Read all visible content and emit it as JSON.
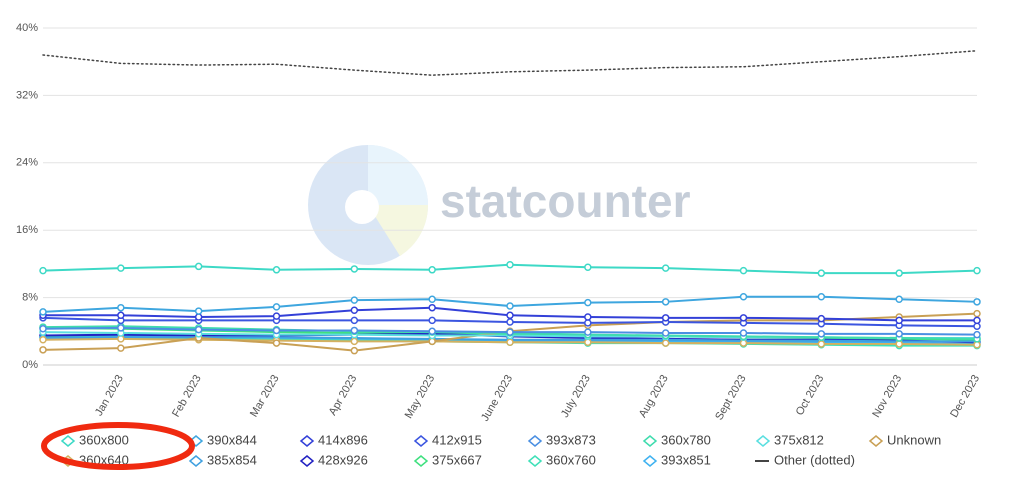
{
  "chart_data": {
    "type": "line",
    "watermark": "statcounter",
    "categories": [
      null,
      "Jan 2023",
      "Feb 2023",
      "Mar 2023",
      "Apr 2023",
      "May 2023",
      "June 2023",
      "July 2023",
      "Aug 2023",
      "Sept 2023",
      "Oct 2023",
      "Nov 2023",
      "Dec 2023"
    ],
    "ylim": [
      0,
      40
    ],
    "yticks": [
      {
        "value": 0,
        "label": "0%"
      },
      {
        "value": 8,
        "label": "8%"
      },
      {
        "value": 16,
        "label": "16%"
      },
      {
        "value": 24,
        "label": "24%"
      },
      {
        "value": 32,
        "label": "32%"
      },
      {
        "value": 40,
        "label": "40%"
      }
    ],
    "grid": true,
    "legend": "bottom",
    "series": [
      {
        "name": "360x800",
        "color": "#3dd9c6",
        "values": [
          11.2,
          11.5,
          11.7,
          11.3,
          11.4,
          11.3,
          11.9,
          11.6,
          11.5,
          11.2,
          10.9,
          10.9,
          11.2
        ]
      },
      {
        "name": "390x844",
        "color": "#3ea6df",
        "values": [
          6.3,
          6.8,
          6.4,
          6.9,
          7.7,
          7.8,
          7.0,
          7.4,
          7.5,
          8.1,
          8.1,
          7.8,
          7.5
        ]
      },
      {
        "name": "414x896",
        "color": "#3340d8",
        "values": [
          5.9,
          5.9,
          5.7,
          5.8,
          6.5,
          6.8,
          5.9,
          5.7,
          5.6,
          5.6,
          5.5,
          5.3,
          5.3
        ]
      },
      {
        "name": "412x915",
        "color": "#3b55e0",
        "values": [
          5.6,
          5.3,
          5.3,
          5.3,
          5.3,
          5.3,
          5.1,
          5.0,
          5.1,
          5.0,
          4.9,
          4.7,
          4.6
        ]
      },
      {
        "name": "393x873",
        "color": "#4a8fe2",
        "values": [
          4.3,
          4.4,
          4.2,
          4.1,
          4.1,
          4.0,
          3.9,
          3.9,
          3.8,
          3.8,
          3.7,
          3.7,
          3.6
        ]
      },
      {
        "name": "360x780",
        "color": "#3fdcae",
        "values": [
          4.5,
          4.6,
          4.4,
          4.2,
          4.0,
          3.9,
          3.8,
          3.6,
          3.5,
          3.4,
          3.3,
          3.2,
          3.1
        ]
      },
      {
        "name": "375x812",
        "color": "#5adfe0",
        "values": [
          3.9,
          3.8,
          3.7,
          3.6,
          3.6,
          3.5,
          3.5,
          3.4,
          3.4,
          3.3,
          3.3,
          3.2,
          3.2
        ]
      },
      {
        "name": "Unknown",
        "color": "#c9a055",
        "values": [
          1.8,
          2.0,
          3.2,
          2.6,
          1.7,
          2.8,
          4.0,
          4.7,
          5.1,
          5.3,
          5.3,
          5.7,
          6.1
        ]
      },
      {
        "name": "360x640",
        "color": "#d4b060",
        "values": [
          3.0,
          3.1,
          3.0,
          2.9,
          2.8,
          2.8,
          2.7,
          2.7,
          2.6,
          2.6,
          2.5,
          2.5,
          2.4
        ]
      },
      {
        "name": "385x854",
        "color": "#3fa0e0",
        "values": [
          3.2,
          3.3,
          3.3,
          3.3,
          3.2,
          3.1,
          3.0,
          3.0,
          3.0,
          2.9,
          2.9,
          2.8,
          2.8
        ]
      },
      {
        "name": "428x926",
        "color": "#2222c2",
        "values": [
          3.5,
          3.6,
          3.5,
          3.5,
          3.6,
          3.7,
          3.4,
          3.2,
          3.1,
          3.0,
          3.0,
          2.9,
          2.7
        ]
      },
      {
        "name": "375x667",
        "color": "#3fe07f",
        "values": [
          4.4,
          4.3,
          4.1,
          3.9,
          3.8,
          3.7,
          3.6,
          3.5,
          3.4,
          3.3,
          3.2,
          3.1,
          3.0
        ]
      },
      {
        "name": "360x760",
        "color": "#3fe0b8",
        "values": [
          3.3,
          3.3,
          3.1,
          3.0,
          2.9,
          2.8,
          2.7,
          2.6,
          2.6,
          2.5,
          2.4,
          2.3,
          2.3
        ]
      },
      {
        "name": "393x851",
        "color": "#3fb2f0",
        "values": [
          3.4,
          3.4,
          3.3,
          3.2,
          3.1,
          3.0,
          2.9,
          2.8,
          2.8,
          2.7,
          2.7,
          2.6,
          2.5
        ]
      },
      {
        "name": "Other (dotted)",
        "color": "#444444",
        "style": "dotted",
        "values": [
          36.8,
          35.8,
          35.6,
          35.7,
          35.0,
          34.4,
          34.8,
          35.0,
          35.3,
          35.4,
          36.0,
          36.6,
          37.3
        ]
      }
    ]
  }
}
